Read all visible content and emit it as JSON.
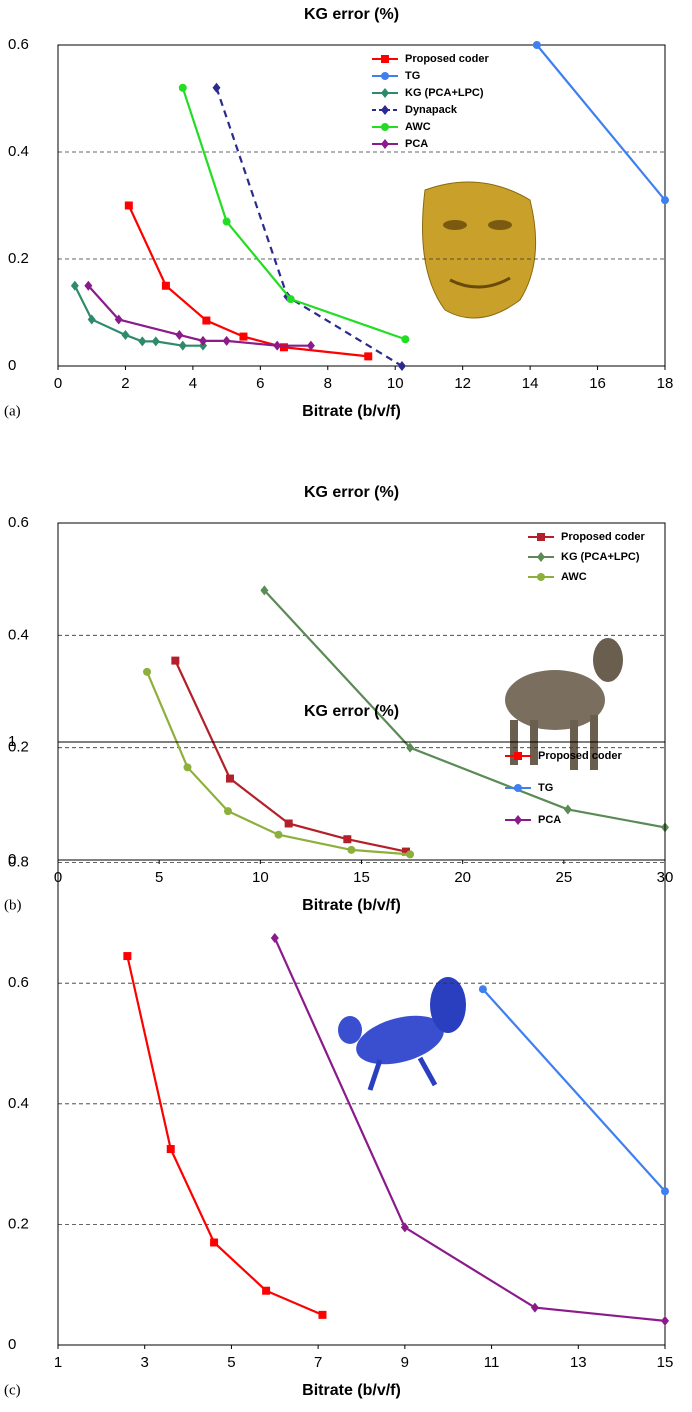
{
  "chart_data": [
    {
      "type": "line",
      "title": "KG error (%)",
      "x_label": "Bitrate (b/v/f)",
      "panel_label": "(a)",
      "xlim": [
        0,
        18
      ],
      "xticks": [
        0,
        2,
        4,
        6,
        8,
        10,
        12,
        14,
        16,
        18
      ],
      "ylim": [
        0,
        0.6
      ],
      "yticks": [
        0,
        0.2,
        0.4,
        0.6
      ],
      "grid": true,
      "legend": "upper center",
      "series": [
        {
          "name": "Proposed coder",
          "color": "#ff0000",
          "marker": "square",
          "linestyle": "solid",
          "x": [
            2.1,
            3.2,
            4.4,
            5.5,
            6.7,
            9.2
          ],
          "values": [
            0.3,
            0.15,
            0.085,
            0.055,
            0.035,
            0.018
          ]
        },
        {
          "name": "TG",
          "color": "#3f7fef",
          "marker": "circle",
          "linestyle": "solid",
          "x": [
            14.2,
            18
          ],
          "values": [
            0.6,
            0.31
          ]
        },
        {
          "name": "KG (PCA+LPC)",
          "color": "#2e8b6a",
          "marker": "diamond",
          "linestyle": "solid",
          "x": [
            0.5,
            1,
            2,
            2.5,
            2.9,
            3.7,
            4.3
          ],
          "values": [
            0.15,
            0.087,
            0.058,
            0.046,
            0.046,
            0.038,
            0.038
          ]
        },
        {
          "name": "Dynapack",
          "color": "#2b2b8f",
          "marker": "diamond",
          "linestyle": "dashed",
          "x": [
            4.7,
            6.8,
            10.2
          ],
          "values": [
            0.52,
            0.13,
            0
          ]
        },
        {
          "name": "AWC",
          "color": "#22dd22",
          "marker": "circle",
          "linestyle": "solid",
          "x": [
            3.7,
            5,
            6.9,
            10.3
          ],
          "values": [
            0.52,
            0.27,
            0.125,
            0.05
          ]
        },
        {
          "name": "PCA",
          "color": "#8b1a8b",
          "marker": "diamond",
          "linestyle": "solid",
          "x": [
            0.9,
            1.8,
            3.6,
            4.3,
            5,
            6.5,
            7.5
          ],
          "values": [
            0.15,
            0.087,
            0.058,
            0.047,
            0.047,
            0.038,
            0.038
          ]
        }
      ]
    },
    {
      "type": "line",
      "title": "KG error (%)",
      "x_label": "Bitrate (b/v/f)",
      "panel_label": "(b)",
      "xlim": [
        0,
        30
      ],
      "xticks": [
        0,
        5,
        10,
        15,
        20,
        25,
        30
      ],
      "ylim": [
        0,
        0.6
      ],
      "yticks": [
        0,
        0.2,
        0.4,
        0.6
      ],
      "grid": true,
      "legend": "upper right",
      "series": [
        {
          "name": "Proposed coder",
          "color": "#b3202a",
          "marker": "square",
          "linestyle": "solid",
          "x": [
            5.8,
            8.5,
            11.4,
            14.3,
            17.2
          ],
          "values": [
            0.355,
            0.145,
            0.065,
            0.037,
            0.015
          ]
        },
        {
          "name": "KG (PCA+LPC)",
          "color": "#5a8a55",
          "marker": "diamond",
          "linestyle": "solid",
          "x": [
            10.2,
            17.4,
            25.2,
            30
          ],
          "values": [
            0.48,
            0.2,
            0.09,
            0.058
          ]
        },
        {
          "name": "AWC",
          "color": "#8db03c",
          "marker": "circle",
          "linestyle": "solid",
          "x": [
            4.4,
            6.4,
            8.4,
            10.9,
            14.5,
            17.4
          ],
          "values": [
            0.335,
            0.165,
            0.087,
            0.045,
            0.018,
            0.01
          ]
        }
      ]
    },
    {
      "type": "line",
      "title": "KG error (%)",
      "x_label": "Bitrate (b/v/f)",
      "panel_label": "(c)",
      "xlim": [
        1,
        15
      ],
      "xticks": [
        1,
        3,
        5,
        7,
        9,
        11,
        13,
        15
      ],
      "ylim": [
        0,
        1
      ],
      "yticks": [
        0,
        0.2,
        0.4,
        0.6,
        0.8,
        1
      ],
      "grid": true,
      "legend": "upper right",
      "series": [
        {
          "name": "Proposed coder",
          "color": "#ff0000",
          "marker": "square",
          "linestyle": "solid",
          "x": [
            2.6,
            3.6,
            4.6,
            5.8,
            7.1
          ],
          "values": [
            0.645,
            0.325,
            0.17,
            0.09,
            0.05
          ]
        },
        {
          "name": "TG",
          "color": "#3f7fef",
          "marker": "circle",
          "linestyle": "solid",
          "x": [
            10.8,
            15
          ],
          "values": [
            0.59,
            0.255
          ]
        },
        {
          "name": "PCA",
          "color": "#8b1a8b",
          "marker": "diamond",
          "linestyle": "solid",
          "x": [
            6,
            9,
            12,
            15
          ],
          "values": [
            0.675,
            0.195,
            0.062,
            0.04
          ]
        }
      ]
    }
  ]
}
